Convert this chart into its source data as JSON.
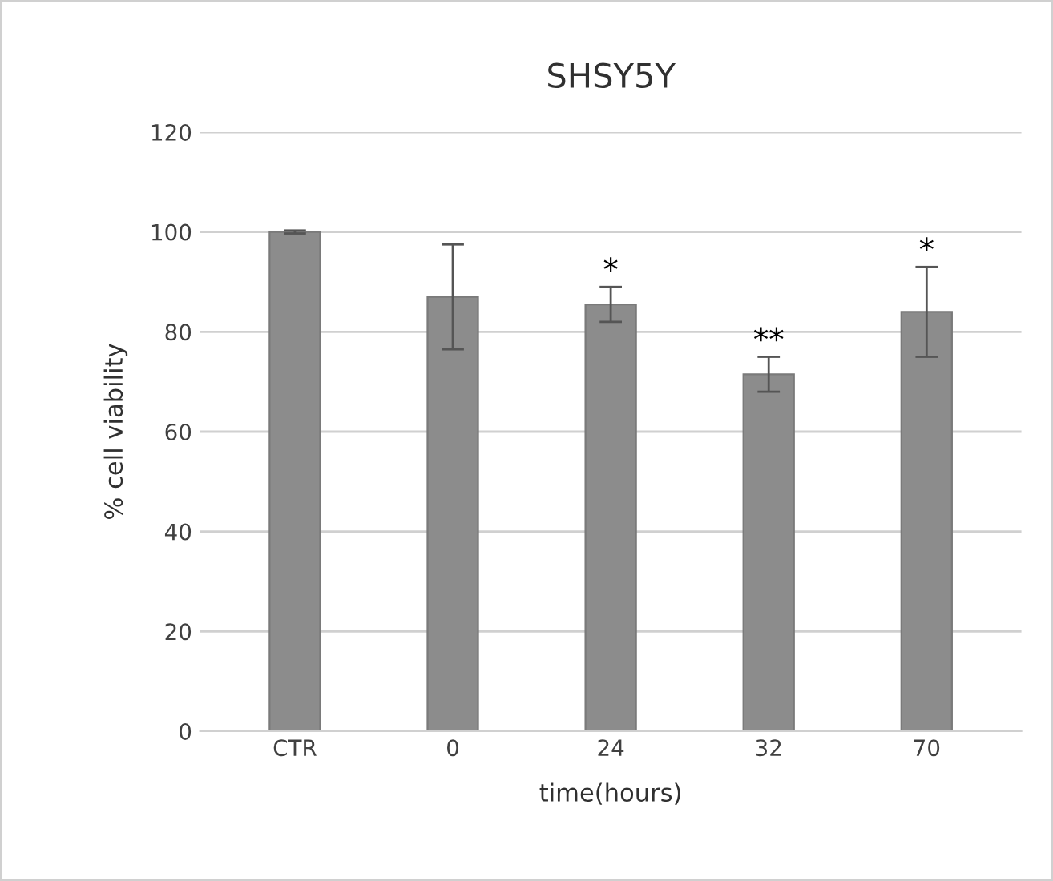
{
  "chart_data": {
    "type": "bar",
    "title": "SHSY5Y",
    "xlabel": "time(hours)",
    "ylabel": "% cell viability",
    "categories": [
      "CTR",
      "0",
      "24",
      "32",
      "70"
    ],
    "values": [
      100,
      87,
      85.5,
      71.5,
      84
    ],
    "errors": [
      0.3,
      10.5,
      3.5,
      3.5,
      9
    ],
    "color": "#8c8c8c",
    "ylim": [
      0,
      120
    ],
    "yticks": [
      0,
      20,
      40,
      60,
      80,
      100,
      120
    ],
    "grid": "y",
    "annotations": [
      {
        "text": "*",
        "x": "24",
        "y": 89
      },
      {
        "text": "**",
        "x": "32",
        "y": 75
      },
      {
        "text": "*",
        "x": "70",
        "y": 93
      }
    ]
  }
}
